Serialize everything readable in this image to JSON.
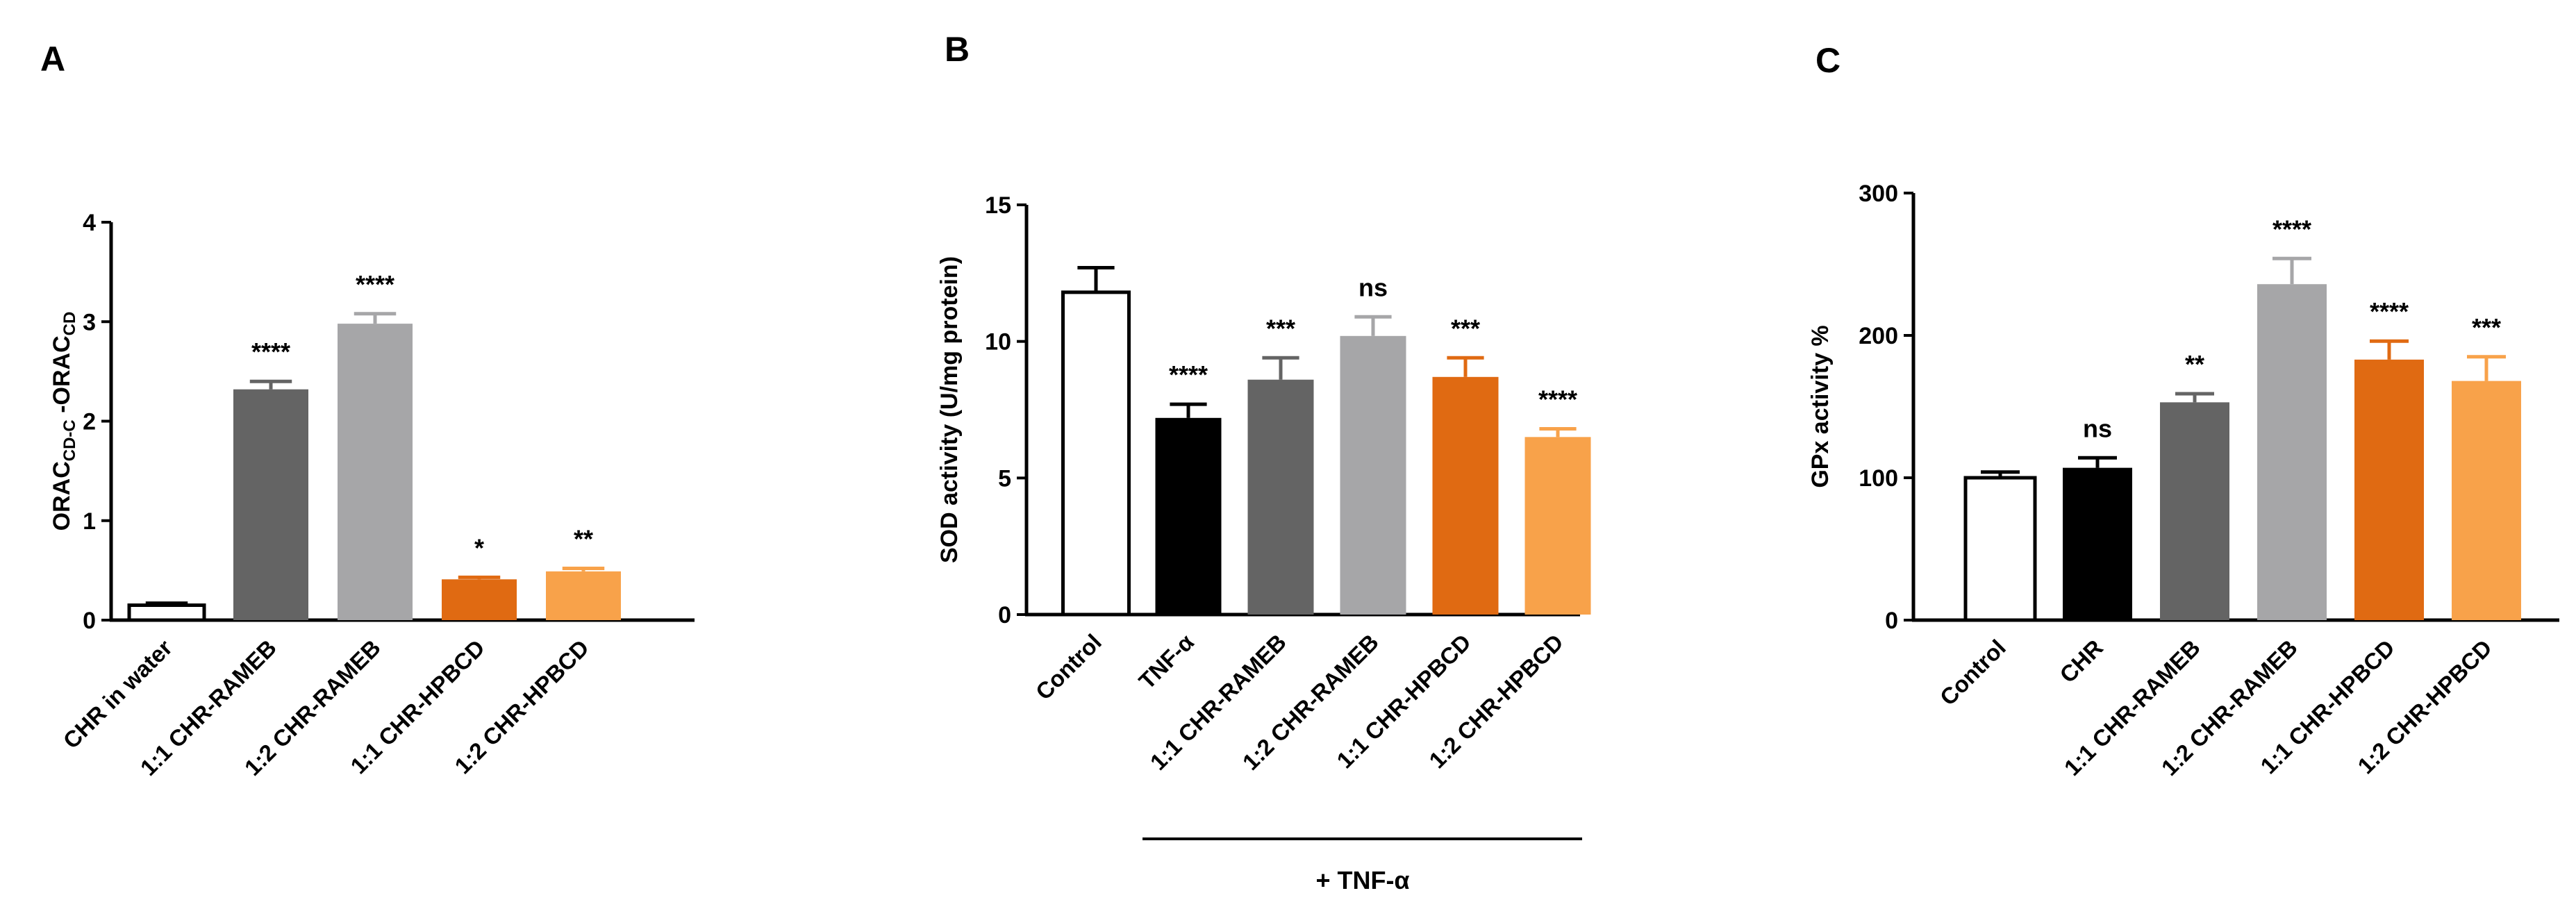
{
  "chart_data": [
    {
      "panel": "A",
      "type": "bar",
      "ylabel": "ORAC",
      "ylabel_sub1": "CD-C",
      "ylabel_mid": " -ORAC",
      "ylabel_sub2": "CD",
      "ylim": [
        0,
        4
      ],
      "yticks": [
        "0",
        "1",
        "2",
        "3",
        "4"
      ],
      "categories": [
        "CHR in water",
        "1:1 CHR-RAMEB",
        "1:2 CHR-RAMEB",
        "1:1 CHR-HPBCD",
        "1:2 CHR-HPBCD"
      ],
      "values": [
        0.15,
        2.32,
        2.98,
        0.41,
        0.49
      ],
      "errors": [
        0.02,
        0.08,
        0.1,
        0.02,
        0.03
      ],
      "significance": [
        "",
        "****",
        "****",
        "*",
        "**"
      ],
      "colors": [
        "#ffffff",
        "#646464",
        "#a6a6a8",
        "#e06a12",
        "#f8a24a"
      ]
    },
    {
      "panel": "B",
      "type": "bar",
      "ylabel": "SOD activity (U/mg protein)",
      "ylim": [
        0,
        15
      ],
      "yticks": [
        "0",
        "5",
        "10",
        "15"
      ],
      "categories": [
        "Control",
        "TNF-α",
        "1:1 CHR-RAMEB",
        "1:2 CHR-RAMEB",
        "1:1 CHR-HPBCD",
        "1:2 CHR-HPBCD"
      ],
      "values": [
        11.8,
        7.2,
        8.6,
        10.2,
        8.7,
        6.5
      ],
      "errors": [
        0.9,
        0.5,
        0.8,
        0.7,
        0.7,
        0.3
      ],
      "significance": [
        "",
        "****",
        "***",
        "ns",
        "***",
        "****"
      ],
      "colors": [
        "#ffffff",
        "#000000",
        "#646464",
        "#a6a6a8",
        "#e06a12",
        "#f8a24a"
      ],
      "bracket_label": "+ TNF-α"
    },
    {
      "panel": "C",
      "type": "bar",
      "ylabel": "GPx activity %",
      "ylim": [
        0,
        300
      ],
      "yticks": [
        "0",
        "100",
        "200",
        "300"
      ],
      "categories": [
        "Control",
        "CHR",
        "1:1 CHR-RAMEB",
        "1:2 CHR-RAMEB",
        "1:1 CHR-HPBCD",
        "1:2 CHR-HPBCD"
      ],
      "values": [
        100,
        107,
        153,
        236,
        183,
        168
      ],
      "errors": [
        4,
        7,
        6,
        18,
        13,
        17
      ],
      "significance": [
        "",
        "ns",
        "**",
        "****",
        "****",
        "***"
      ],
      "colors": [
        "#ffffff",
        "#000000",
        "#646464",
        "#a6a6a8",
        "#e06a12",
        "#f8a24a"
      ]
    }
  ]
}
